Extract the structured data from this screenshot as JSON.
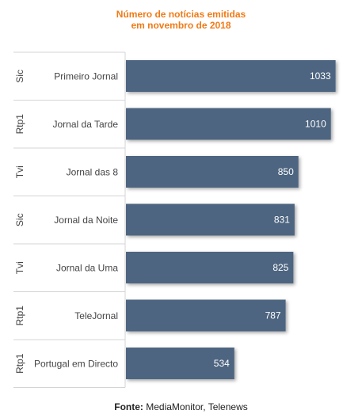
{
  "colors": {
    "title": "#f07a16",
    "bar": "#4e6580",
    "bar_label": "#ffffff",
    "grid": "#d4d4d4",
    "text": "#444444"
  },
  "chart_data": {
    "type": "bar",
    "orientation": "horizontal",
    "title_lines": [
      "Número de notícias emitidas",
      "em novembro de 2018"
    ],
    "groups": [
      "Sic",
      "Rtp1",
      "Tvi",
      "Sic",
      "Tvi",
      "Rtp1",
      "Rtp1"
    ],
    "categories": [
      "Primeiro Jornal",
      "Jornal da Tarde",
      "Jornal das 8",
      "Jornal da Noite",
      "Jornal da Uma",
      "TeleJornal",
      "Portugal em Directo"
    ],
    "values": [
      1033,
      1010,
      850,
      831,
      825,
      787,
      534
    ],
    "xlim": [
      0,
      1050
    ],
    "data_labels": true
  },
  "source": {
    "label": "Fonte:",
    "text": "MediaMonitor, Telenews"
  }
}
